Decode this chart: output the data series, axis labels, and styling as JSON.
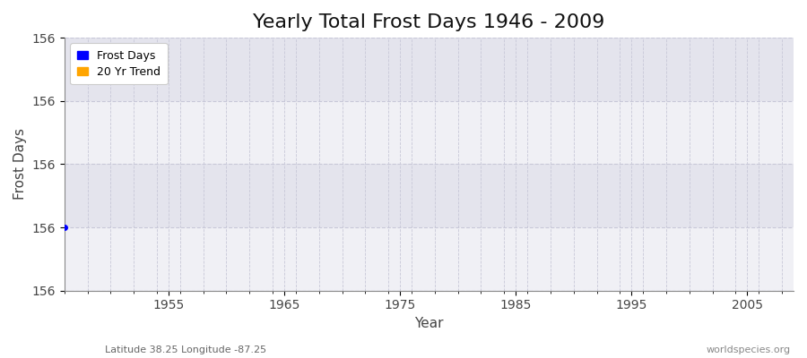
{
  "title": "Yearly Total Frost Days 1946 - 2009",
  "xlabel": "Year",
  "ylabel": "Frost Days",
  "subtitle_left": "Latitude 38.25 Longitude -87.25",
  "subtitle_right": "worldspecies.org",
  "legend_labels": [
    "Frost Days",
    "20 Yr Trend"
  ],
  "legend_colors": [
    "#0000ff",
    "#ffa500"
  ],
  "data_years": [
    1946
  ],
  "data_values": [
    155.75
  ],
  "xlim": [
    1946,
    2009
  ],
  "ylim": [
    155.5,
    156.5
  ],
  "y_tick_positions": [
    155.5,
    155.75,
    156.0,
    156.25,
    156.5
  ],
  "y_tick_label": "156",
  "x_ticks": [
    1955,
    1965,
    1975,
    1985,
    1995,
    2005
  ],
  "bg_color_outer": "#ffffff",
  "bg_color_inner_light": "#f0f0f5",
  "bg_color_inner_dark": "#e4e4ed",
  "grid_color": "#c8c8d8",
  "title_fontsize": 16,
  "axis_label_fontsize": 11,
  "tick_fontsize": 10,
  "dot_color": "#0000ff",
  "dot_size": 4,
  "subtitle_right_color": "#888888"
}
